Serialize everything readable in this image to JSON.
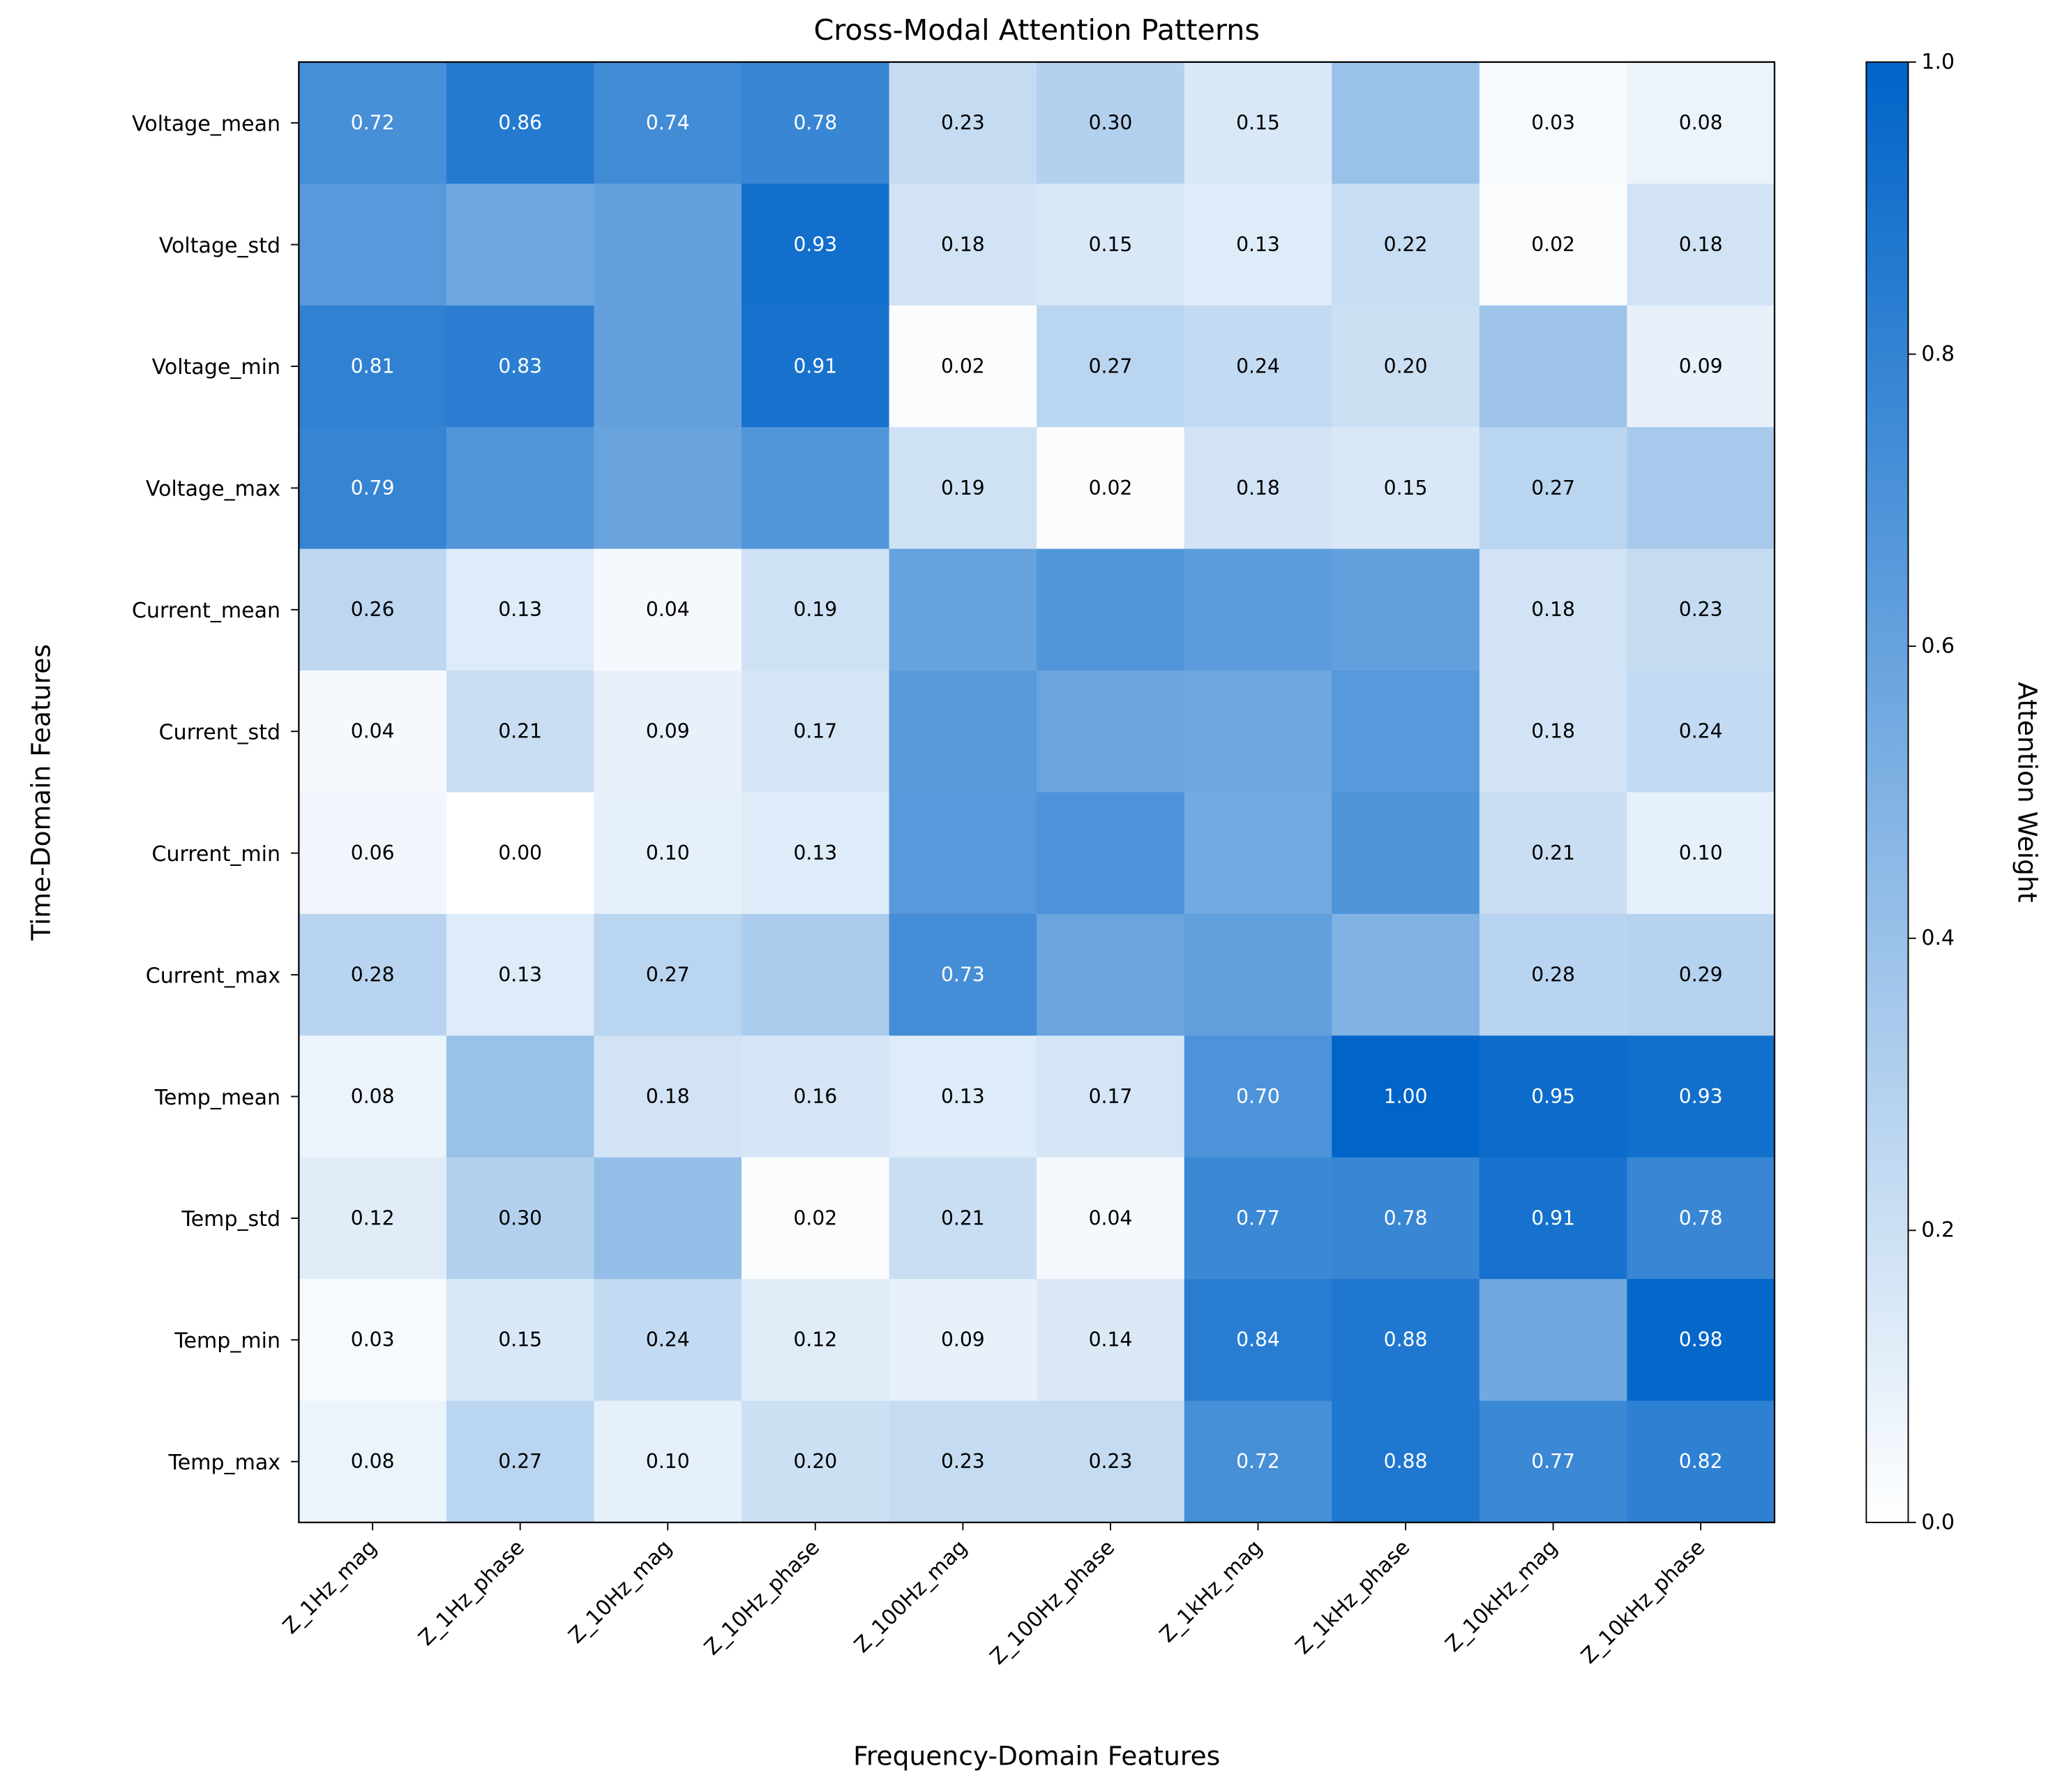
{
  "chart_data": {
    "type": "heatmap",
    "title": "Cross-Modal Attention Patterns",
    "xlabel": "Frequency-Domain Features",
    "ylabel": "Time-Domain Features",
    "colorbar_label": "Attention Weight",
    "colorbar_ticks": [
      "0.0",
      "0.2",
      "0.4",
      "0.6",
      "0.8",
      "1.0"
    ],
    "vlim": [
      0,
      1
    ],
    "colormap": {
      "low": "#ffffff",
      "high": "#0064c8"
    },
    "x_categories": [
      "Z_1Hz_mag",
      "Z_1Hz_phase",
      "Z_10Hz_mag",
      "Z_10Hz_phase",
      "Z_100Hz_mag",
      "Z_100Hz_phase",
      "Z_1kHz_mag",
      "Z_1kHz_phase",
      "Z_10kHz_mag",
      "Z_10kHz_phase"
    ],
    "y_categories": [
      "Voltage_mean",
      "Voltage_std",
      "Voltage_min",
      "Voltage_max",
      "Current_mean",
      "Current_std",
      "Current_min",
      "Current_max",
      "Temp_mean",
      "Temp_std",
      "Temp_min",
      "Temp_max"
    ],
    "values": [
      [
        0.72,
        0.86,
        0.74,
        0.78,
        0.23,
        0.3,
        0.15,
        0.4,
        0.03,
        0.08
      ],
      [
        0.66,
        0.56,
        0.61,
        0.93,
        0.18,
        0.15,
        0.13,
        0.22,
        0.02,
        0.18
      ],
      [
        0.81,
        0.83,
        0.61,
        0.91,
        0.02,
        0.27,
        0.24,
        0.2,
        0.38,
        0.09
      ],
      [
        0.79,
        0.68,
        0.59,
        0.68,
        0.19,
        0.02,
        0.18,
        0.15,
        0.27,
        0.35
      ],
      [
        0.26,
        0.13,
        0.04,
        0.19,
        0.6,
        0.68,
        0.64,
        0.62,
        0.18,
        0.23
      ],
      [
        0.04,
        0.21,
        0.09,
        0.17,
        0.65,
        0.58,
        0.56,
        0.66,
        0.18,
        0.24
      ],
      [
        0.06,
        0.0,
        0.1,
        0.13,
        0.66,
        0.7,
        0.55,
        0.69,
        0.21,
        0.1
      ],
      [
        0.28,
        0.13,
        0.27,
        0.33,
        0.73,
        0.58,
        0.62,
        0.5,
        0.28,
        0.29
      ],
      [
        0.08,
        0.4,
        0.18,
        0.16,
        0.13,
        0.17,
        0.7,
        1.0,
        0.95,
        0.93
      ],
      [
        0.12,
        0.3,
        0.42,
        0.02,
        0.21,
        0.04,
        0.77,
        0.78,
        0.91,
        0.78
      ],
      [
        0.03,
        0.15,
        0.24,
        0.12,
        0.09,
        0.14,
        0.84,
        0.88,
        0.56,
        0.98
      ],
      [
        0.08,
        0.27,
        0.1,
        0.2,
        0.23,
        0.23,
        0.72,
        0.88,
        0.77,
        0.82
      ]
    ],
    "annotated": [
      [
        true,
        true,
        true,
        true,
        true,
        true,
        true,
        false,
        true,
        true
      ],
      [
        false,
        false,
        false,
        true,
        true,
        true,
        true,
        true,
        true,
        true
      ],
      [
        true,
        true,
        false,
        true,
        true,
        true,
        true,
        true,
        false,
        true
      ],
      [
        true,
        false,
        false,
        false,
        true,
        true,
        true,
        true,
        true,
        false
      ],
      [
        true,
        true,
        true,
        true,
        false,
        false,
        false,
        false,
        true,
        true
      ],
      [
        true,
        true,
        true,
        true,
        false,
        false,
        false,
        false,
        true,
        true
      ],
      [
        true,
        true,
        true,
        true,
        false,
        false,
        false,
        false,
        true,
        true
      ],
      [
        true,
        true,
        true,
        false,
        true,
        false,
        false,
        false,
        true,
        true
      ],
      [
        true,
        false,
        true,
        true,
        true,
        true,
        true,
        true,
        true,
        true
      ],
      [
        true,
        true,
        false,
        true,
        true,
        true,
        true,
        true,
        true,
        true
      ],
      [
        true,
        true,
        true,
        true,
        true,
        true,
        true,
        true,
        false,
        true
      ],
      [
        true,
        true,
        true,
        true,
        true,
        true,
        true,
        true,
        true,
        true
      ]
    ]
  }
}
